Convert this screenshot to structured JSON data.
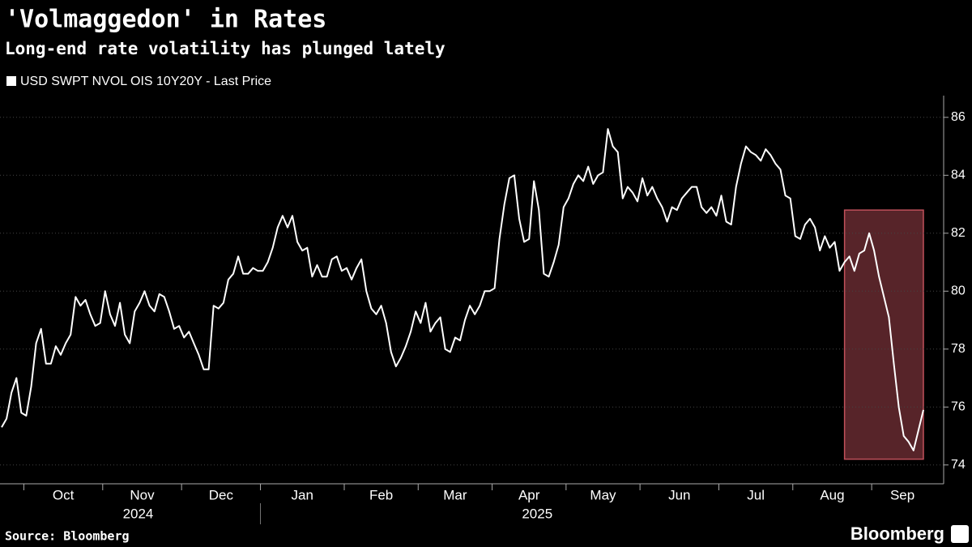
{
  "chart_data": {
    "type": "line",
    "title": "'Volmaggedon' in Rates",
    "subtitle": "Long-end rate volatility has plunged lately",
    "source": "Source: Bloomberg",
    "brand": "Bloomberg",
    "categories": [
      null,
      null,
      null,
      null,
      null,
      "Oct",
      null,
      null,
      null,
      null,
      null,
      null,
      null,
      null,
      null,
      null,
      null,
      null,
      null,
      null,
      null,
      "Nov",
      null,
      null,
      null,
      null,
      null,
      null,
      null,
      null,
      null,
      null,
      null,
      null,
      null,
      null,
      null,
      "Dec",
      null,
      null,
      null,
      null,
      null,
      null,
      null,
      null,
      null,
      null,
      null,
      null,
      null,
      null,
      null,
      "Jan",
      null,
      null,
      null,
      null,
      null,
      null,
      null,
      null,
      null,
      null,
      null,
      null,
      null,
      null,
      null,
      null,
      "Feb",
      null,
      null,
      null,
      null,
      null,
      null,
      null,
      null,
      null,
      null,
      null,
      null,
      null,
      null,
      "Mar",
      null,
      null,
      null,
      null,
      null,
      null,
      null,
      null,
      null,
      null,
      null,
      null,
      null,
      null,
      "Apr",
      null,
      null,
      null,
      null,
      null,
      null,
      null,
      null,
      null,
      null,
      null,
      null,
      null,
      null,
      "May",
      null,
      null,
      null,
      null,
      null,
      null,
      null,
      null,
      null,
      null,
      null,
      null,
      null,
      null,
      "Jun",
      null,
      null,
      null,
      null,
      null,
      null,
      null,
      null,
      null,
      null,
      null,
      null,
      null,
      null,
      null,
      "Jul",
      null,
      null,
      null,
      null,
      null,
      null,
      null,
      null,
      null,
      null,
      null,
      null,
      null,
      null,
      "Aug",
      null,
      null,
      null,
      null,
      null,
      null,
      null,
      null,
      null,
      null,
      null,
      null,
      null,
      null,
      null,
      "Sep",
      null,
      null,
      null,
      null,
      null,
      null,
      null,
      null,
      null,
      null
    ],
    "category_years": [
      null,
      null,
      null,
      null,
      null,
      "2024",
      null,
      null,
      null,
      null,
      null,
      null,
      null,
      null,
      null,
      null,
      null,
      null,
      null,
      null,
      null,
      null,
      null,
      null,
      null,
      null,
      null,
      null,
      null,
      null,
      null,
      null,
      null,
      null,
      null,
      null,
      null,
      null,
      null,
      null,
      null,
      null,
      null,
      null,
      null,
      null,
      null,
      null,
      null,
      null,
      null,
      null,
      null,
      "2025",
      null,
      null,
      null,
      null,
      null,
      null,
      null,
      null,
      null,
      null,
      null,
      null,
      null,
      null,
      null,
      null,
      null,
      null,
      null,
      null,
      null,
      null,
      null,
      null,
      null,
      null,
      null,
      null,
      null,
      null,
      null,
      null,
      null,
      null,
      null,
      null,
      null,
      null,
      null,
      null,
      null,
      null,
      null,
      null,
      null,
      null,
      null,
      null,
      null,
      null,
      null,
      null,
      null,
      null,
      null,
      null,
      null,
      null,
      null,
      null,
      null,
      null,
      null,
      null,
      null,
      null,
      null,
      null,
      null,
      null,
      null,
      null,
      null,
      null,
      null,
      null,
      null,
      null,
      null,
      null,
      null,
      null,
      null,
      null,
      null,
      null,
      null,
      null,
      null,
      null,
      null,
      null,
      null,
      null,
      null,
      null,
      null,
      null,
      null,
      null,
      null,
      null,
      null,
      null,
      null,
      null,
      null,
      null,
      null,
      null,
      null,
      null,
      null,
      null,
      null,
      null,
      null,
      null,
      null,
      null,
      null,
      null,
      null,
      null,
      null,
      null,
      null,
      null,
      null,
      null,
      null,
      null,
      null,
      null
    ],
    "series": [
      {
        "name": "USD SWPT NVOL OIS 10Y20Y - Last Price",
        "color": "#ffffff",
        "values": [
          75.3,
          75.6,
          76.5,
          77.0,
          75.8,
          75.7,
          76.7,
          78.2,
          78.7,
          77.5,
          77.5,
          78.1,
          77.8,
          78.2,
          78.5,
          79.8,
          79.5,
          79.7,
          79.2,
          78.8,
          78.9,
          80.0,
          79.2,
          78.8,
          79.6,
          78.5,
          78.2,
          79.3,
          79.6,
          80.0,
          79.5,
          79.3,
          79.9,
          79.8,
          79.3,
          78.7,
          78.8,
          78.4,
          78.6,
          78.2,
          77.8,
          77.3,
          77.3,
          79.5,
          79.4,
          79.6,
          80.4,
          80.6,
          81.2,
          80.6,
          80.6,
          80.8,
          80.7,
          80.7,
          81.0,
          81.5,
          82.2,
          82.6,
          82.2,
          82.6,
          81.7,
          81.4,
          81.5,
          80.5,
          80.9,
          80.5,
          80.5,
          81.1,
          81.2,
          80.7,
          80.8,
          80.4,
          80.8,
          81.1,
          80.0,
          79.4,
          79.2,
          79.5,
          78.9,
          77.9,
          77.4,
          77.7,
          78.1,
          78.6,
          79.3,
          78.9,
          79.6,
          78.6,
          78.9,
          79.1,
          78.0,
          77.9,
          78.4,
          78.3,
          79.0,
          79.5,
          79.2,
          79.5,
          80.0,
          80.0,
          80.1,
          81.8,
          83.0,
          83.9,
          84.0,
          82.5,
          81.7,
          81.8,
          83.8,
          82.8,
          80.6,
          80.5,
          81.0,
          81.6,
          82.9,
          83.2,
          83.7,
          84.0,
          83.8,
          84.3,
          83.7,
          84.0,
          84.1,
          85.6,
          85.0,
          84.8,
          83.2,
          83.6,
          83.4,
          83.1,
          83.9,
          83.3,
          83.6,
          83.2,
          82.9,
          82.4,
          82.9,
          82.8,
          83.2,
          83.4,
          83.6,
          83.6,
          82.9,
          82.7,
          82.9,
          82.6,
          83.3,
          82.4,
          82.3,
          83.6,
          84.4,
          85.0,
          84.8,
          84.7,
          84.5,
          84.9,
          84.7,
          84.4,
          84.2,
          83.3,
          83.2,
          81.9,
          81.8,
          82.3,
          82.5,
          82.2,
          81.4,
          81.9,
          81.5,
          81.7,
          80.7,
          81.0,
          81.2,
          80.7,
          81.3,
          81.4,
          82.0,
          81.4,
          80.5,
          79.8,
          79.1,
          77.5,
          76.0,
          75.0,
          74.8,
          74.5,
          75.2,
          75.9
        ]
      }
    ],
    "highlight": {
      "color": "#c0505a",
      "start": 171,
      "ylim": [
        74.2,
        82.8
      ]
    },
    "ylim": [
      73.35,
      86.75
    ],
    "yticks": [
      74,
      76,
      78,
      80,
      82,
      84,
      86
    ],
    "grid": true,
    "y_axis_side": "right"
  }
}
